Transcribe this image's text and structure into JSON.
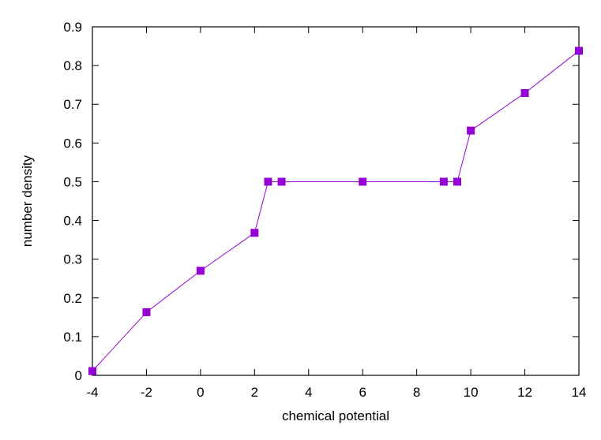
{
  "chart_data": {
    "type": "line",
    "title": "",
    "xlabel": "chemical potential",
    "ylabel": "number density",
    "xlim": [
      -4,
      14
    ],
    "ylim": [
      0,
      0.9
    ],
    "xticks": [
      "-4",
      "-2",
      "0",
      "2",
      "4",
      "6",
      "8",
      "10",
      "12",
      "14"
    ],
    "yticks": [
      "0",
      "0.1",
      "0.2",
      "0.3",
      "0.4",
      "0.5",
      "0.6",
      "0.7",
      "0.8",
      "0.9"
    ],
    "grid": false,
    "legend": "none",
    "series": [
      {
        "color": "#9400d3",
        "marker": "square",
        "x": [
          -4,
          -2,
          0,
          2,
          2.5,
          3,
          6,
          9,
          9.5,
          10,
          12,
          14
        ],
        "y": [
          0.011,
          0.163,
          0.27,
          0.368,
          0.5,
          0.5,
          0.5,
          0.5,
          0.5,
          0.632,
          0.729,
          0.838
        ]
      }
    ]
  }
}
